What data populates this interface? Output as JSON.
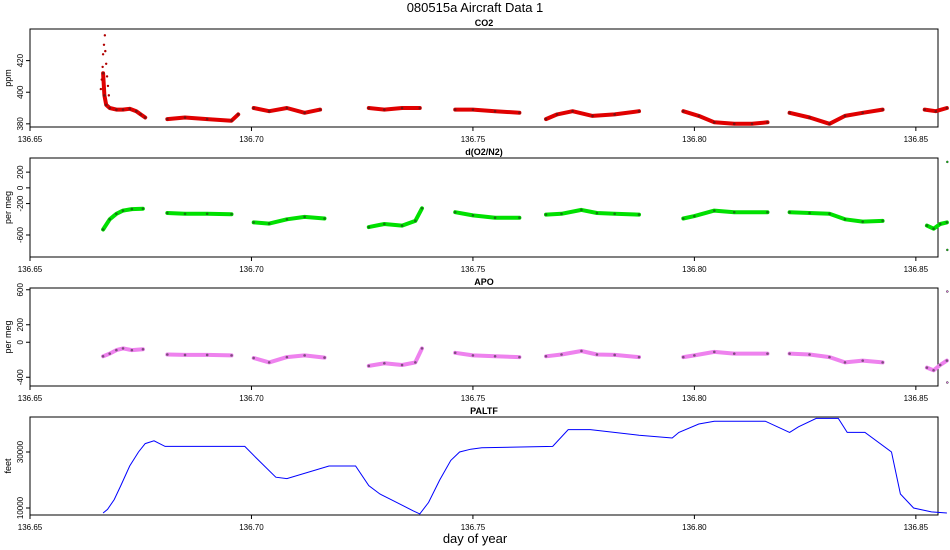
{
  "figure": {
    "title": "080515a   Aircraft Data 1",
    "xlabel": "day of year"
  },
  "chart_data": [
    {
      "type": "scatter",
      "title": "CO2",
      "ylabel": "ppm",
      "xlim": [
        136.65,
        136.855
      ],
      "ylim": [
        378,
        440
      ],
      "xticks": [
        136.65,
        136.7,
        136.75,
        136.8,
        136.85
      ],
      "yticks": [
        380,
        400,
        420
      ],
      "color": "#e00000",
      "grid": false,
      "segments": [
        {
          "x": [
            136.6665,
            136.6668,
            136.6672,
            136.668,
            136.6695,
            136.671,
            136.6725,
            136.674,
            136.675,
            136.676
          ],
          "y": [
            412,
            398,
            392,
            390,
            389,
            389,
            389.5,
            388,
            386,
            384
          ]
        },
        {
          "x": [
            136.681,
            136.685,
            136.69,
            136.6955,
            136.697
          ],
          "y": [
            383,
            384,
            383,
            382,
            386
          ]
        },
        {
          "x": [
            136.7005,
            136.704,
            136.708,
            136.712,
            136.7155
          ],
          "y": [
            390,
            388,
            390,
            387,
            389
          ]
        },
        {
          "x": [
            136.7265,
            136.73,
            136.734,
            136.738
          ],
          "y": [
            390,
            389,
            390,
            390
          ]
        },
        {
          "x": [
            136.746,
            136.75,
            136.755,
            136.7605
          ],
          "y": [
            389,
            389,
            388,
            387
          ]
        },
        {
          "x": [
            136.7665,
            136.769,
            136.7725,
            136.777,
            136.782,
            136.7875
          ],
          "y": [
            383,
            386,
            388,
            385,
            386,
            388
          ]
        },
        {
          "x": [
            136.7975,
            136.801,
            136.8045,
            136.809,
            136.813,
            136.8165
          ],
          "y": [
            388,
            385,
            381,
            380,
            380,
            381
          ]
        },
        {
          "x": [
            136.8215,
            136.826,
            136.8305,
            136.834,
            136.838,
            136.8425
          ],
          "y": [
            387,
            384,
            380,
            385,
            387,
            389
          ]
        },
        {
          "x": [
            136.852,
            136.8545,
            136.857
          ],
          "y": [
            389,
            388,
            390
          ]
        }
      ],
      "spike": {
        "x": [
          136.666,
          136.6662,
          136.6664,
          136.6665,
          136.6667,
          136.6669,
          136.667,
          136.6672,
          136.6674,
          136.6676,
          136.6678
        ],
        "y": [
          402,
          408,
          416,
          424,
          430,
          436,
          426,
          418,
          410,
          404,
          398
        ]
      }
    },
    {
      "type": "scatter",
      "title": "d(O2/N2)",
      "ylabel": "per meg",
      "xlim": [
        136.65,
        136.855
      ],
      "ylim": [
        -880,
        380
      ],
      "xticks": [
        136.65,
        136.7,
        136.75,
        136.8,
        136.85
      ],
      "yticks": [
        -600,
        -200,
        0,
        200
      ],
      "color": "#00e000",
      "grid": false,
      "segments": [
        {
          "x": [
            136.6665,
            136.668,
            136.6695,
            136.671,
            136.673,
            136.6755
          ],
          "y": [
            -530,
            -400,
            -330,
            -290,
            -270,
            -265
          ]
        },
        {
          "x": [
            136.681,
            136.685,
            136.69,
            136.6955
          ],
          "y": [
            -320,
            -330,
            -330,
            -335
          ]
        },
        {
          "x": [
            136.7005,
            136.704,
            136.708,
            136.712,
            136.7165
          ],
          "y": [
            -440,
            -455,
            -400,
            -370,
            -390
          ]
        },
        {
          "x": [
            136.7265,
            136.73,
            136.734,
            136.737,
            136.7385
          ],
          "y": [
            -500,
            -460,
            -480,
            -420,
            -260
          ]
        },
        {
          "x": [
            136.746,
            136.75,
            136.755,
            136.7605
          ],
          "y": [
            -310,
            -350,
            -380,
            -380
          ]
        },
        {
          "x": [
            136.7665,
            136.77,
            136.7745,
            136.778,
            136.782,
            136.7875
          ],
          "y": [
            -340,
            -330,
            -280,
            -320,
            -330,
            -340
          ]
        },
        {
          "x": [
            136.7975,
            136.8,
            136.8045,
            136.809,
            136.8165
          ],
          "y": [
            -390,
            -360,
            -290,
            -310,
            -310
          ]
        },
        {
          "x": [
            136.8215,
            136.826,
            136.8305,
            136.834,
            136.838,
            136.8425
          ],
          "y": [
            -310,
            -320,
            -330,
            -400,
            -430,
            -420
          ]
        },
        {
          "x": [
            136.8525,
            136.854,
            136.8555,
            136.857
          ],
          "y": [
            -480,
            -520,
            -460,
            -440
          ]
        }
      ],
      "outliers": {
        "x": [
          136.8571,
          136.8571
        ],
        "y": [
          330,
          -790
        ]
      }
    },
    {
      "type": "scatter",
      "title": "APO",
      "ylabel": "per meg",
      "xlim": [
        136.65,
        136.855
      ],
      "ylim": [
        -500,
        620
      ],
      "xticks": [
        136.65,
        136.7,
        136.75,
        136.8,
        136.85
      ],
      "yticks": [
        -400,
        0,
        200,
        600
      ],
      "color": "#ee82ee",
      "grid": false,
      "segments": [
        {
          "x": [
            136.6665,
            136.668,
            136.6695,
            136.671,
            136.673,
            136.6755
          ],
          "y": [
            -160,
            -130,
            -90,
            -70,
            -90,
            -80
          ]
        },
        {
          "x": [
            136.681,
            136.685,
            136.69,
            136.6955
          ],
          "y": [
            -140,
            -145,
            -145,
            -150
          ]
        },
        {
          "x": [
            136.7005,
            136.704,
            136.708,
            136.712,
            136.7165
          ],
          "y": [
            -180,
            -230,
            -170,
            -150,
            -175
          ]
        },
        {
          "x": [
            136.7265,
            136.73,
            136.734,
            136.737,
            136.7385
          ],
          "y": [
            -270,
            -240,
            -260,
            -230,
            -70
          ]
        },
        {
          "x": [
            136.746,
            136.75,
            136.755,
            136.7605
          ],
          "y": [
            -120,
            -150,
            -160,
            -170
          ]
        },
        {
          "x": [
            136.7665,
            136.77,
            136.7745,
            136.778,
            136.782,
            136.7875
          ],
          "y": [
            -160,
            -140,
            -100,
            -140,
            -145,
            -170
          ]
        },
        {
          "x": [
            136.7975,
            136.8,
            136.8045,
            136.809,
            136.8165
          ],
          "y": [
            -170,
            -150,
            -110,
            -130,
            -130
          ]
        },
        {
          "x": [
            136.8215,
            136.826,
            136.8305,
            136.834,
            136.838,
            136.8425
          ],
          "y": [
            -130,
            -140,
            -170,
            -230,
            -210,
            -230
          ]
        },
        {
          "x": [
            136.8525,
            136.854,
            136.8555,
            136.857
          ],
          "y": [
            -290,
            -320,
            -260,
            -210
          ]
        }
      ],
      "outliers": {
        "x": [
          136.8571,
          136.8571
        ],
        "y": [
          580,
          -460
        ]
      }
    },
    {
      "type": "line",
      "title": "PALTF",
      "ylabel": "feet",
      "xlim": [
        136.65,
        136.855
      ],
      "ylim": [
        7500,
        42500
      ],
      "xticks": [
        136.65,
        136.7,
        136.75,
        136.8,
        136.85
      ],
      "yticks": [
        10000,
        30000
      ],
      "color": "#0000ff",
      "grid": false,
      "x": [
        136.6665,
        136.6675,
        136.669,
        136.6705,
        136.6725,
        136.6745,
        136.676,
        136.678,
        136.6805,
        136.6985,
        136.701,
        136.7055,
        136.708,
        136.7175,
        136.7235,
        136.7265,
        136.729,
        136.7315,
        136.734,
        136.7365,
        136.738,
        136.74,
        136.7425,
        136.745,
        136.747,
        136.7495,
        136.752,
        136.768,
        136.7715,
        136.7765,
        136.7875,
        136.795,
        136.7965,
        136.801,
        136.8045,
        136.816,
        136.8215,
        136.8235,
        136.8275,
        136.8325,
        136.8345,
        136.8385,
        136.8445,
        136.8465,
        136.8495,
        136.8535,
        136.857
      ],
      "y": [
        8200,
        9500,
        13000,
        18000,
        25000,
        30000,
        33000,
        34000,
        32000,
        32000,
        28000,
        21000,
        20500,
        25000,
        25000,
        18000,
        15000,
        13000,
        11000,
        9000,
        7900,
        12000,
        20000,
        27000,
        30000,
        31000,
        31500,
        32000,
        38000,
        38000,
        36000,
        35000,
        37000,
        40000,
        41000,
        41000,
        37000,
        39000,
        42000,
        42000,
        37000,
        37000,
        30000,
        15000,
        10000,
        8600,
        8200
      ]
    }
  ]
}
